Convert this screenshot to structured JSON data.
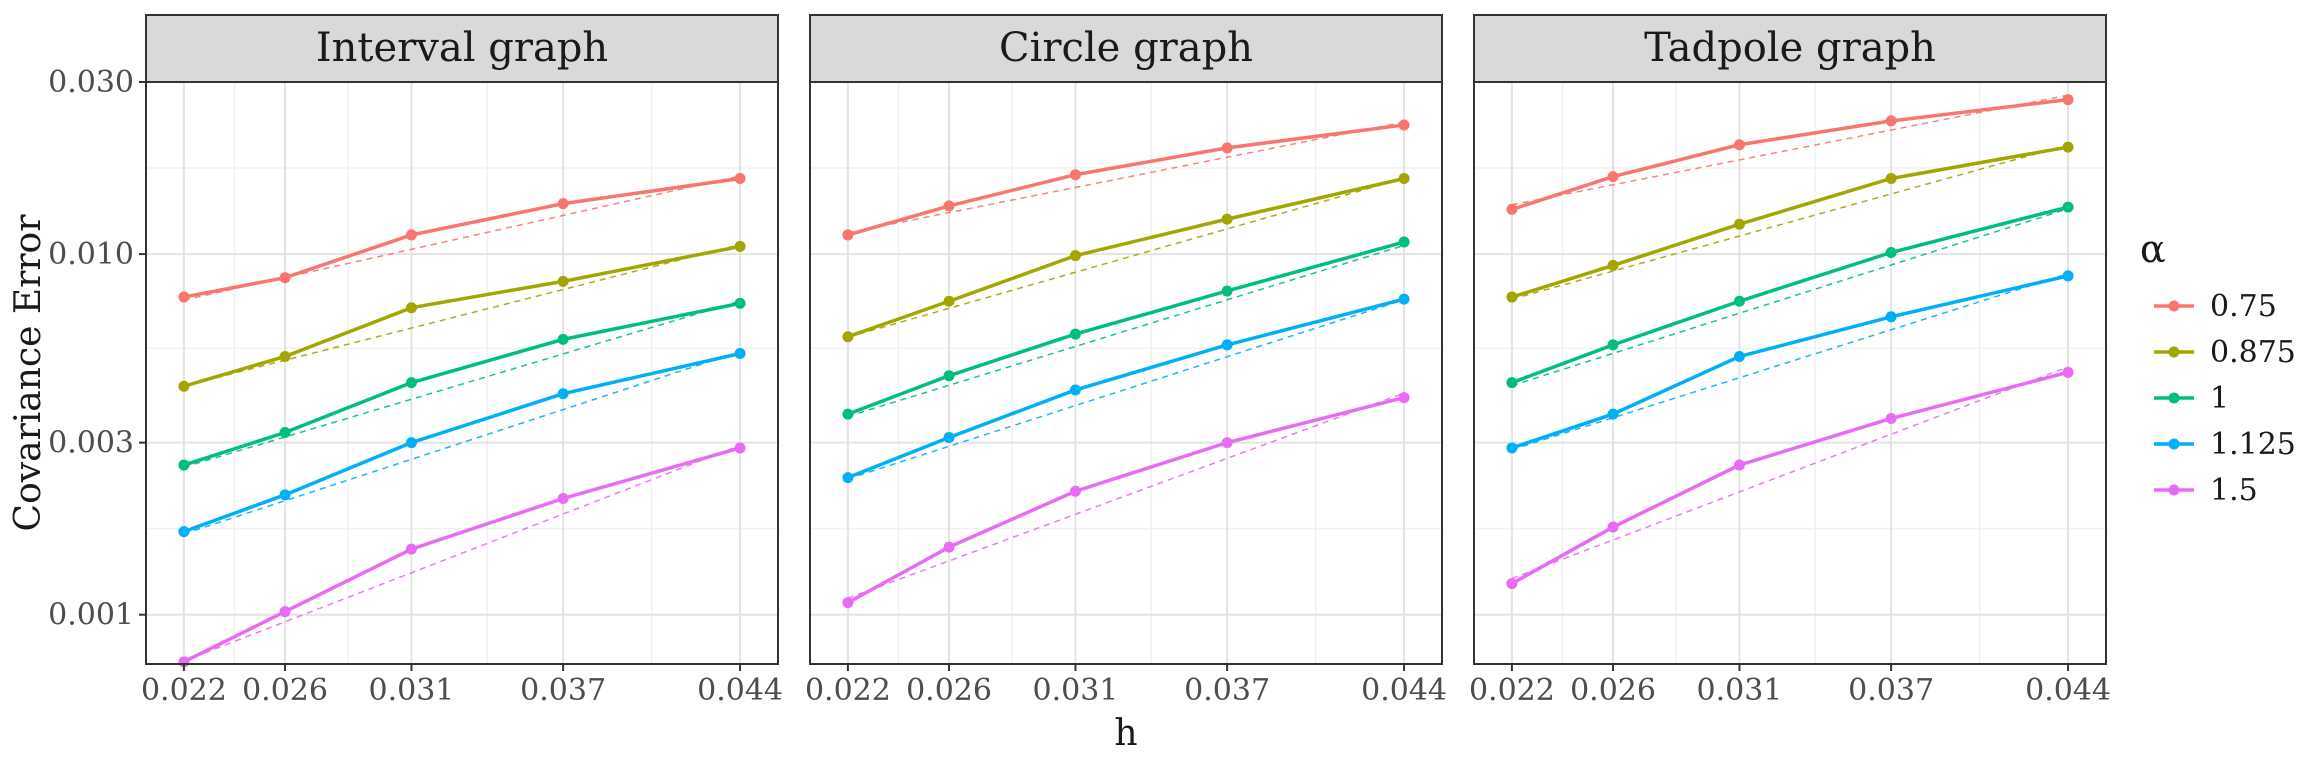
{
  "chart_data": {
    "type": "line",
    "xlabel": "h",
    "ylabel": "Covariance Error",
    "y_scale": "log",
    "ylim": [
      0.00073,
      0.03
    ],
    "y_ticks": [
      0.001,
      0.003,
      0.01,
      0.03
    ],
    "y_tick_labels": [
      "0.001",
      "0.003",
      "0.010",
      "0.030"
    ],
    "x_ticks": [
      0.022,
      0.026,
      0.031,
      0.037,
      0.044
    ],
    "x_tick_labels": [
      "0.022",
      "0.026",
      "0.031",
      "0.037",
      "0.044"
    ],
    "grid": true,
    "legend": {
      "title": "α",
      "placement": "right",
      "entries": [
        "0.75",
        "0.875",
        "1",
        "1.125",
        "1.5"
      ]
    },
    "colors": {
      "0.75": "#F8766D",
      "0.875": "#A3A500",
      "1": "#00BF7D",
      "1.125": "#00B0F6",
      "1.5": "#E76BF3"
    },
    "panels": [
      {
        "title": "Interval graph",
        "series": [
          {
            "name": "0.75",
            "values": [
              0.0076,
              0.0086,
              0.0113,
              0.0138,
              0.0162
            ]
          },
          {
            "name": "0.875",
            "values": [
              0.0043,
              0.0052,
              0.0071,
              0.0084,
              0.0105
            ]
          },
          {
            "name": "1",
            "values": [
              0.0026,
              0.0032,
              0.0044,
              0.0058,
              0.0073
            ]
          },
          {
            "name": "1.125",
            "values": [
              0.0017,
              0.00215,
              0.003,
              0.0041,
              0.0053
            ]
          },
          {
            "name": "1.5",
            "values": [
              0.00074,
              0.00102,
              0.00152,
              0.0021,
              0.0029
            ]
          }
        ]
      },
      {
        "title": "Circle graph",
        "series": [
          {
            "name": "0.75",
            "values": [
              0.0113,
              0.0136,
              0.0166,
              0.0197,
              0.0228
            ]
          },
          {
            "name": "0.875",
            "values": [
              0.0059,
              0.0074,
              0.0099,
              0.0125,
              0.0162
            ]
          },
          {
            "name": "1",
            "values": [
              0.0036,
              0.0046,
              0.006,
              0.0079,
              0.0108
            ]
          },
          {
            "name": "1.125",
            "values": [
              0.0024,
              0.0031,
              0.0042,
              0.0056,
              0.0075
            ]
          },
          {
            "name": "1.5",
            "values": [
              0.00108,
              0.00154,
              0.0022,
              0.003,
              0.004
            ]
          }
        ]
      },
      {
        "title": "Tadpole graph",
        "series": [
          {
            "name": "0.75",
            "values": [
              0.0133,
              0.0164,
              0.0201,
              0.0234,
              0.0268
            ]
          },
          {
            "name": "0.875",
            "values": [
              0.0076,
              0.0093,
              0.0121,
              0.0162,
              0.0198
            ]
          },
          {
            "name": "1",
            "values": [
              0.0044,
              0.0056,
              0.0074,
              0.0101,
              0.0135
            ]
          },
          {
            "name": "1.125",
            "values": [
              0.0029,
              0.0036,
              0.0052,
              0.0067,
              0.0087
            ]
          },
          {
            "name": "1.5",
            "values": [
              0.00122,
              0.00175,
              0.0026,
              0.0035,
              0.0047
            ]
          }
        ]
      }
    ]
  }
}
